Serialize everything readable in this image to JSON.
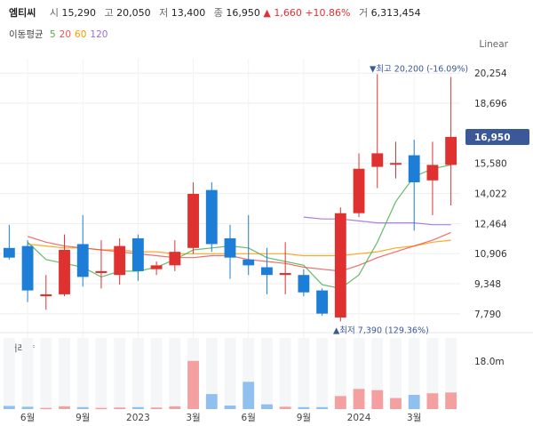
{
  "header": {
    "name": "엠티씨",
    "open_label": "시",
    "open": "15,290",
    "high_label": "고",
    "high": "20,050",
    "low_label": "저",
    "low": "13,400",
    "close_label": "종",
    "close": "16,950",
    "change_arrow": "▲",
    "change": "1,660",
    "change_pct": "+10.86%",
    "volume_label": "거",
    "volume": "6,313,454"
  },
  "ma_legend": {
    "label": "이동평균",
    "items": [
      {
        "label": "5",
        "color": "#4caf50"
      },
      {
        "label": "20",
        "color": "#ef5350"
      },
      {
        "label": "60",
        "color": "#ff9800"
      },
      {
        "label": "120",
        "color": "#9c6ade"
      }
    ]
  },
  "scale_mode": "Linear",
  "annotations": {
    "high": "▼최고 20,200 (-16.09%)",
    "low": "▲최저 7,390 (129.36%)"
  },
  "current_price": "16,950",
  "volume_panel": {
    "title": "거래량",
    "max_label": "18.0m"
  },
  "colors": {
    "up": "#e03131",
    "down": "#1c7ed6",
    "up_vol": "#f4a0a0",
    "down_vol": "#90c0f0"
  },
  "chart_data": {
    "type": "candlestick",
    "title": "엠티씨",
    "yticks": [
      "20,254",
      "18,696",
      "16,950",
      "15,580",
      "14,022",
      "12,464",
      "10,906",
      "9,348",
      "7,790"
    ],
    "ylim": [
      7000,
      21000
    ],
    "xticks": [
      {
        "label": "6월",
        "index": 1
      },
      {
        "label": "9월",
        "index": 4
      },
      {
        "label": "2023",
        "index": 7
      },
      {
        "label": "3월",
        "index": 10
      },
      {
        "label": "6월",
        "index": 13
      },
      {
        "label": "9월",
        "index": 16
      },
      {
        "label": "2024",
        "index": 19
      },
      {
        "label": "3월",
        "index": 22
      }
    ],
    "candles": [
      {
        "o": 11200,
        "h": 12400,
        "l": 10600,
        "c": 10700
      },
      {
        "o": 11300,
        "h": 11600,
        "l": 8400,
        "c": 9000
      },
      {
        "o": 8700,
        "h": 9800,
        "l": 8000,
        "c": 8800
      },
      {
        "o": 8800,
        "h": 11900,
        "l": 8700,
        "c": 11100
      },
      {
        "o": 11400,
        "h": 12900,
        "l": 9200,
        "c": 9700
      },
      {
        "o": 9900,
        "h": 11600,
        "l": 9100,
        "c": 10000
      },
      {
        "o": 9800,
        "h": 11700,
        "l": 9300,
        "c": 11300
      },
      {
        "o": 11700,
        "h": 11900,
        "l": 9500,
        "c": 10000
      },
      {
        "o": 10100,
        "h": 10500,
        "l": 9800,
        "c": 10300
      },
      {
        "o": 10300,
        "h": 11600,
        "l": 10000,
        "c": 11000
      },
      {
        "o": 11200,
        "h": 14600,
        "l": 10900,
        "c": 14000
      },
      {
        "o": 14200,
        "h": 14600,
        "l": 11000,
        "c": 11400
      },
      {
        "o": 11700,
        "h": 12400,
        "l": 9600,
        "c": 10700
      },
      {
        "o": 10600,
        "h": 12900,
        "l": 9800,
        "c": 10300
      },
      {
        "o": 10200,
        "h": 11200,
        "l": 8800,
        "c": 9800
      },
      {
        "o": 9800,
        "h": 11500,
        "l": 8800,
        "c": 9900
      },
      {
        "o": 9800,
        "h": 10100,
        "l": 8700,
        "c": 8900
      },
      {
        "o": 9000,
        "h": 9100,
        "l": 7700,
        "c": 7800
      },
      {
        "o": 7600,
        "h": 13300,
        "l": 7400,
        "c": 13000
      },
      {
        "o": 13000,
        "h": 16100,
        "l": 12800,
        "c": 15300
      },
      {
        "o": 15400,
        "h": 20200,
        "l": 14300,
        "c": 16100
      },
      {
        "o": 15600,
        "h": 16700,
        "l": 14800,
        "c": 15600
      },
      {
        "o": 16000,
        "h": 16800,
        "l": 12100,
        "c": 14600
      },
      {
        "o": 14700,
        "h": 16700,
        "l": 12900,
        "c": 15500
      },
      {
        "o": 15500,
        "h": 20050,
        "l": 13400,
        "c": 16950
      }
    ],
    "ma5": [
      null,
      11500,
      10600,
      10400,
      10200,
      9700,
      10000,
      10000,
      10200,
      10600,
      11100,
      11200,
      11300,
      11200,
      10700,
      10500,
      10300,
      9300,
      9100,
      9800,
      11500,
      13600,
      14900,
      15300,
      15500
    ],
    "ma20": [
      null,
      11800,
      11500,
      11300,
      11200,
      11100,
      11000,
      10900,
      10800,
      10700,
      10700,
      10800,
      10800,
      10600,
      10500,
      10400,
      10200,
      10100,
      10000,
      10300,
      10700,
      11000,
      11300,
      11600,
      12000
    ],
    "ma60": [
      null,
      11400,
      11300,
      11200,
      11200,
      11100,
      11100,
      11000,
      11000,
      10900,
      10900,
      10900,
      10900,
      10900,
      10900,
      10900,
      10800,
      10800,
      10800,
      10900,
      11000,
      11200,
      11300,
      11500,
      11600
    ],
    "ma120": [
      null,
      null,
      null,
      null,
      null,
      null,
      null,
      null,
      null,
      null,
      null,
      null,
      null,
      null,
      null,
      null,
      12800,
      12700,
      12700,
      12600,
      12500,
      12500,
      12500,
      12400,
      12400
    ],
    "volume": [
      0.8,
      0.6,
      0.3,
      0.7,
      0.5,
      0.3,
      0.4,
      0.5,
      0.4,
      0.7,
      12.2,
      3.8,
      0.9,
      6.9,
      1.2,
      0.6,
      0.5,
      0.5,
      3.3,
      5.1,
      4.8,
      2.8,
      3.6,
      4.0,
      4.2
    ],
    "volume_max": 18.0
  }
}
